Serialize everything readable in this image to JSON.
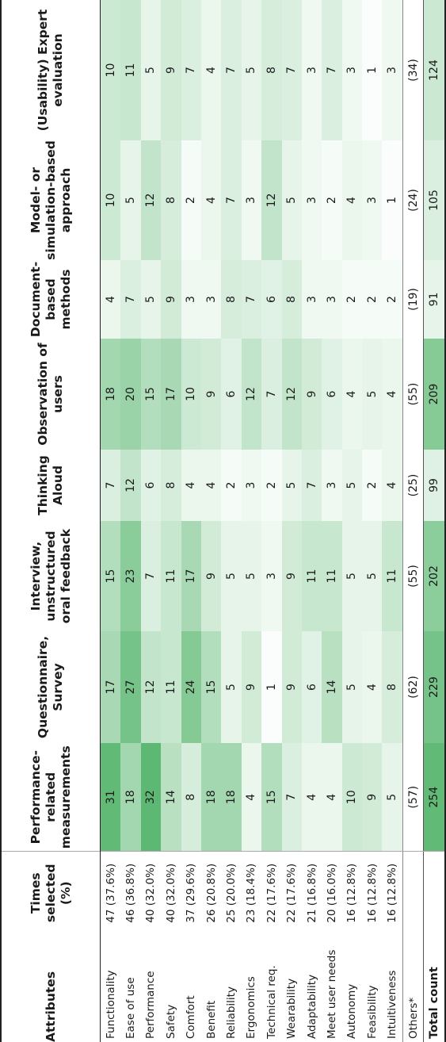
{
  "chart_data": {
    "type": "table",
    "columns": [
      "Attributes",
      "Times selected (%)",
      "Performance-related measurements",
      "Questionnaire, Survey",
      "Interview, unstructured oral feedback",
      "Thinking Aloud",
      "Observation of users",
      "Document-based methods",
      "Model- or simulation-based approach",
      "(Usability) Expert evaluation"
    ],
    "rows": [
      {
        "attribute": "Functionality",
        "selected": "47 (37.6%)",
        "values": [
          31,
          17,
          15,
          7,
          18,
          4,
          10,
          10
        ]
      },
      {
        "attribute": "Ease of use",
        "selected": "46 (36.8%)",
        "values": [
          18,
          27,
          23,
          12,
          20,
          7,
          5,
          11
        ]
      },
      {
        "attribute": "Performance",
        "selected": "40 (32.0%)",
        "values": [
          32,
          12,
          7,
          6,
          15,
          5,
          12,
          5
        ]
      },
      {
        "attribute": "Safety",
        "selected": "40 (32.0%)",
        "values": [
          14,
          11,
          11,
          8,
          17,
          9,
          8,
          9
        ]
      },
      {
        "attribute": "Comfort",
        "selected": "37 (29.6%)",
        "values": [
          8,
          24,
          17,
          4,
          10,
          3,
          2,
          7
        ]
      },
      {
        "attribute": "Benefit",
        "selected": "26 (20.8%)",
        "values": [
          18,
          15,
          9,
          4,
          9,
          3,
          4,
          4
        ]
      },
      {
        "attribute": "Reliability",
        "selected": "25 (20.0%)",
        "values": [
          18,
          5,
          5,
          2,
          6,
          8,
          7,
          7
        ]
      },
      {
        "attribute": "Ergonomics",
        "selected": "23 (18.4%)",
        "values": [
          4,
          9,
          5,
          3,
          12,
          7,
          3,
          5
        ]
      },
      {
        "attribute": "Technical req.",
        "selected": "22 (17.6%)",
        "values": [
          15,
          1,
          3,
          2,
          7,
          6,
          12,
          8
        ]
      },
      {
        "attribute": "Wearability",
        "selected": "22 (17.6%)",
        "values": [
          7,
          9,
          9,
          5,
          12,
          8,
          5,
          7
        ]
      },
      {
        "attribute": "Adaptability",
        "selected": "21 (16.8%)",
        "values": [
          4,
          6,
          11,
          7,
          9,
          3,
          3,
          3
        ]
      },
      {
        "attribute": "Meet user needs",
        "selected": "20 (16.0%)",
        "values": [
          4,
          14,
          11,
          3,
          6,
          3,
          2,
          7
        ]
      },
      {
        "attribute": "Autonomy",
        "selected": "16 (12.8%)",
        "values": [
          10,
          5,
          5,
          5,
          4,
          2,
          4,
          3
        ]
      },
      {
        "attribute": "Feasibility",
        "selected": "16 (12.8%)",
        "values": [
          9,
          4,
          5,
          2,
          5,
          2,
          3,
          1
        ]
      },
      {
        "attribute": "Intuitiveness",
        "selected": "16 (12.8%)",
        "values": [
          5,
          8,
          11,
          4,
          4,
          2,
          1,
          3
        ]
      }
    ],
    "others": {
      "attribute": "Others*",
      "selected": "",
      "values": [
        "(57)",
        "(62)",
        "(55)",
        "(25)",
        "(55)",
        "(19)",
        "(24)",
        "(34)"
      ]
    },
    "total": {
      "attribute": "Total count",
      "selected": "",
      "values": [
        254,
        229,
        202,
        99,
        209,
        91,
        105,
        124
      ]
    },
    "colors": {
      "low": "#ffffff",
      "high": "#5cb872"
    }
  }
}
